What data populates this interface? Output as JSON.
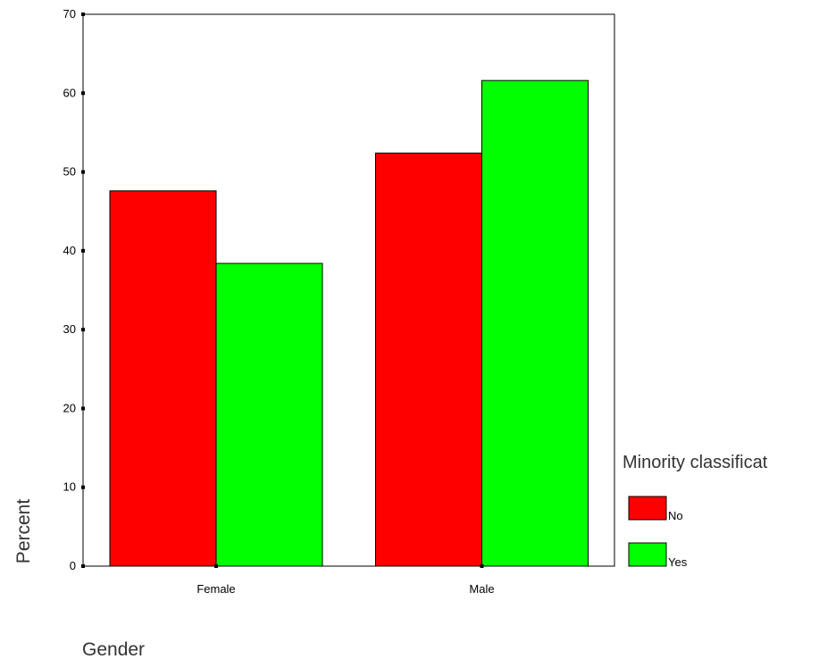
{
  "chart_data": {
    "type": "bar",
    "title": "",
    "xlabel": "Gender",
    "ylabel": "Percent",
    "categories": [
      "Female",
      "Male"
    ],
    "series": [
      {
        "name": "No",
        "values": [
          47.6,
          52.4
        ],
        "color": "#ff0000"
      },
      {
        "name": "Yes",
        "values": [
          38.4,
          61.6
        ],
        "color": "#00ff00"
      }
    ],
    "ylim": [
      0,
      70
    ],
    "yticks": [
      "0",
      "10",
      "20",
      "30",
      "40",
      "50",
      "60",
      "70"
    ],
    "legend": {
      "title": "Minority classificat",
      "position": "right"
    },
    "grid": false
  }
}
